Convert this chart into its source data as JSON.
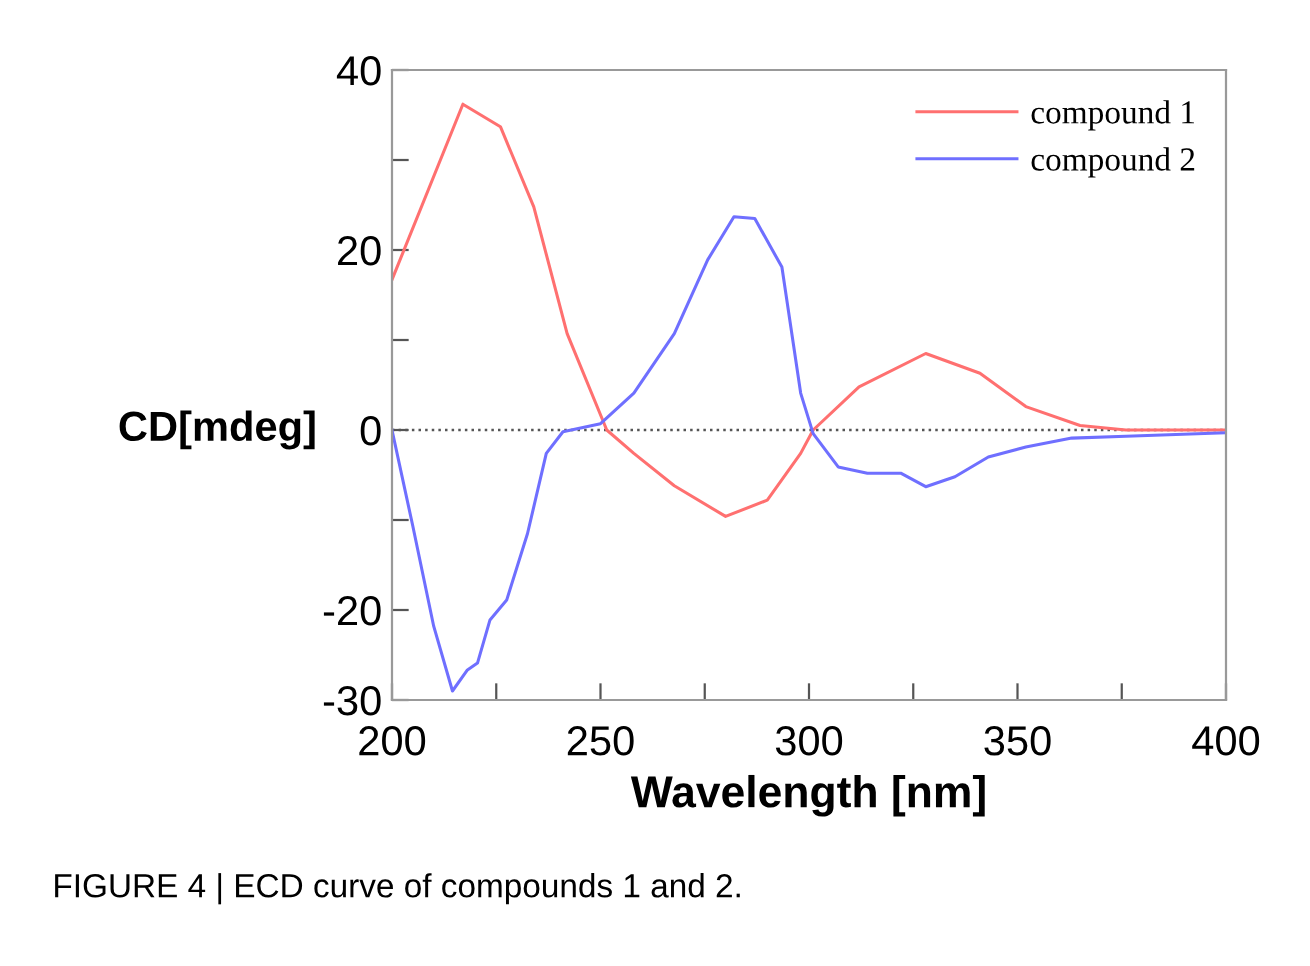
{
  "chart_data": {
    "type": "line",
    "xlabel": "Wavelength [nm]",
    "ylabel": "CD[mdeg]",
    "xlim": [
      200,
      400
    ],
    "ylim": [
      -30,
      40
    ],
    "xticks": [
      200,
      {
        "value": 225,
        "label": null
      },
      250,
      {
        "value": 275,
        "label": null
      },
      300,
      {
        "value": 325,
        "label": null
      },
      350,
      {
        "value": 375,
        "label": null
      },
      400
    ],
    "yticks": [
      -30,
      -20,
      {
        "value": -10,
        "label": null
      },
      0,
      {
        "value": 10,
        "label": null
      },
      20,
      {
        "value": 30,
        "label": null
      },
      40
    ],
    "grid": false,
    "legend": "top right",
    "marker": "none",
    "line_style": "solid",
    "ref_lines": [
      {
        "axis": "y",
        "value": 0,
        "color": "#555555",
        "line_style": "dotted"
      }
    ],
    "annotations": [
      "FIGURE 4 | ECD curve of compounds 1 and 2."
    ],
    "series": [
      {
        "name": "compound 1",
        "color": "#ff7070",
        "x": [
          200,
          217,
          226,
          234,
          242,
          251.5,
          258,
          267.7,
          280,
          290,
          298,
          301,
          312,
          328,
          341,
          352,
          365,
          376,
          400
        ],
        "values": [
          16.7,
          36.2,
          33.7,
          24.8,
          10.7,
          0,
          -2.6,
          -6.2,
          -9.6,
          -7.8,
          -2.6,
          0,
          4.8,
          8.5,
          6.3,
          2.6,
          0.5,
          0,
          0
        ]
      },
      {
        "name": "compound 2",
        "color": "#6f6fff",
        "x": [
          200,
          205,
          210,
          214.5,
          218,
          220.5,
          223.5,
          227.5,
          232.5,
          237,
          241,
          250,
          258,
          267.7,
          275.7,
          282,
          287,
          293.5,
          298,
          301,
          307,
          314,
          322,
          328,
          335,
          343,
          352,
          363,
          376,
          400
        ],
        "values": [
          0,
          -10.7,
          -21.8,
          -29,
          -26.7,
          -25.9,
          -21.1,
          -18.9,
          -11.5,
          -2.6,
          -0.2,
          0.7,
          4.1,
          10.7,
          18.9,
          23.7,
          23.5,
          18.1,
          4.1,
          -0.4,
          -4.1,
          -4.8,
          -4.8,
          -6.3,
          -5.2,
          -3.0,
          -1.9,
          -0.9,
          -0.7,
          -0.3
        ]
      }
    ]
  }
}
